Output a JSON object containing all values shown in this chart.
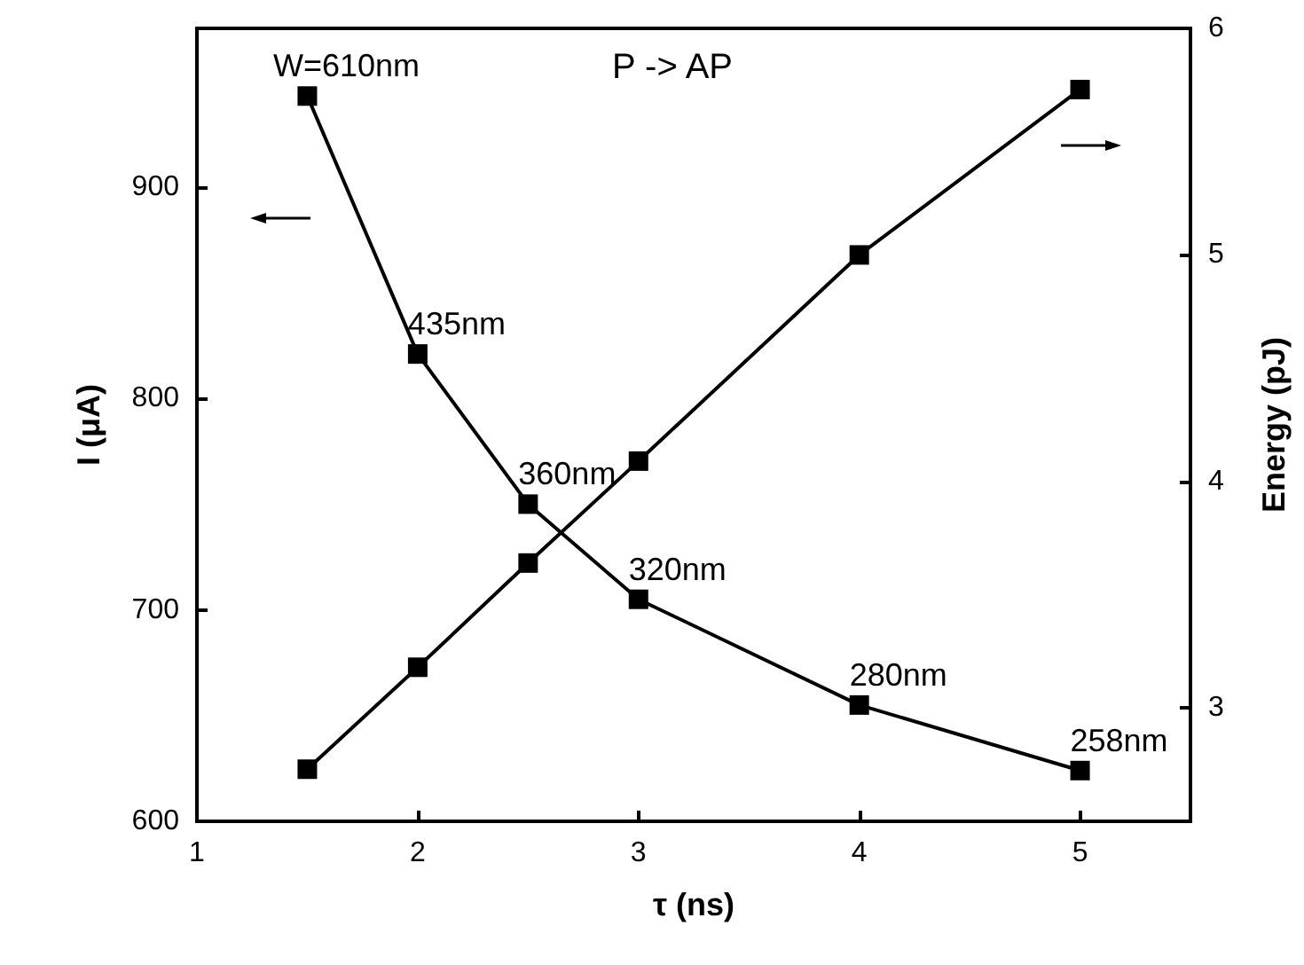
{
  "chart_data": {
    "type": "line",
    "xlabel": "τ (ns)",
    "ylabel": "I (μA)",
    "y2label": "Energy (pJ)",
    "x": [
      1.5,
      2,
      2.5,
      3,
      4,
      5
    ],
    "series": [
      {
        "color": "#000000",
        "values": [
          943,
          821,
          750,
          705,
          655,
          624
        ]
      },
      {
        "color": "#000000",
        "axis": "y2",
        "values": [
          2.73,
          3.18,
          3.64,
          4.09,
          5.0,
          5.73
        ]
      }
    ],
    "xlim": [
      1,
      5.5
    ],
    "xticks": [
      1,
      2,
      3,
      4,
      5
    ],
    "ylim": [
      600,
      975
    ],
    "yticks": [
      600,
      700,
      800,
      900
    ],
    "y2lim": [
      2.5,
      6
    ],
    "y2ticks": [
      3,
      4,
      5,
      6
    ],
    "marker": "square",
    "line_style": "solid",
    "grid": false,
    "annotations": [
      "P -> AP",
      {
        "text": "W=610nm",
        "x": 1.5,
        "y": 943
      },
      {
        "text": "435nm",
        "x": 2,
        "y": 821
      },
      {
        "text": "360nm",
        "x": 2.5,
        "y": 750
      },
      {
        "text": "320nm",
        "x": 3,
        "y": 705
      },
      {
        "text": "280nm",
        "x": 4,
        "y": 655
      },
      {
        "text": "258nm",
        "x": 5,
        "y": 624
      }
    ]
  }
}
